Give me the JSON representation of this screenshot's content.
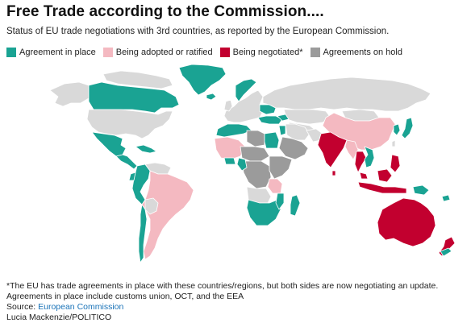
{
  "header": {
    "title": "Free Trade according to the Commission....",
    "subtitle": "Status of EU trade negotiations with 3rd countries, as reported by the European Commission."
  },
  "colors": {
    "agreement_in_place": "#1aa393",
    "being_adopted": "#f4b9c1",
    "being_negotiated": "#c2002f",
    "on_hold": "#9b9b9b",
    "no_status": "#d9d9d9",
    "ocean": "#ffffff"
  },
  "legend": [
    {
      "key": "agreement_in_place",
      "label": "Agreement in place",
      "color": "#1aa393"
    },
    {
      "key": "being_adopted",
      "label": "Being adopted or ratified",
      "color": "#f4b9c1"
    },
    {
      "key": "being_negotiated",
      "label": "Being negotiated*",
      "color": "#c2002f"
    },
    {
      "key": "on_hold",
      "label": "Agreements on hold",
      "color": "#9b9b9b"
    }
  ],
  "footer": {
    "note_line1": "*The EU has trade agreements in place with these countries/regions, but both sides are now negotiating an update.",
    "note_line2": "Agreements in place include customs union, OCT, and the EEA",
    "source_prefix": "Source: ",
    "source_name": "European Commission",
    "credit": "Lucia Mackenzie/POLITICO"
  }
}
